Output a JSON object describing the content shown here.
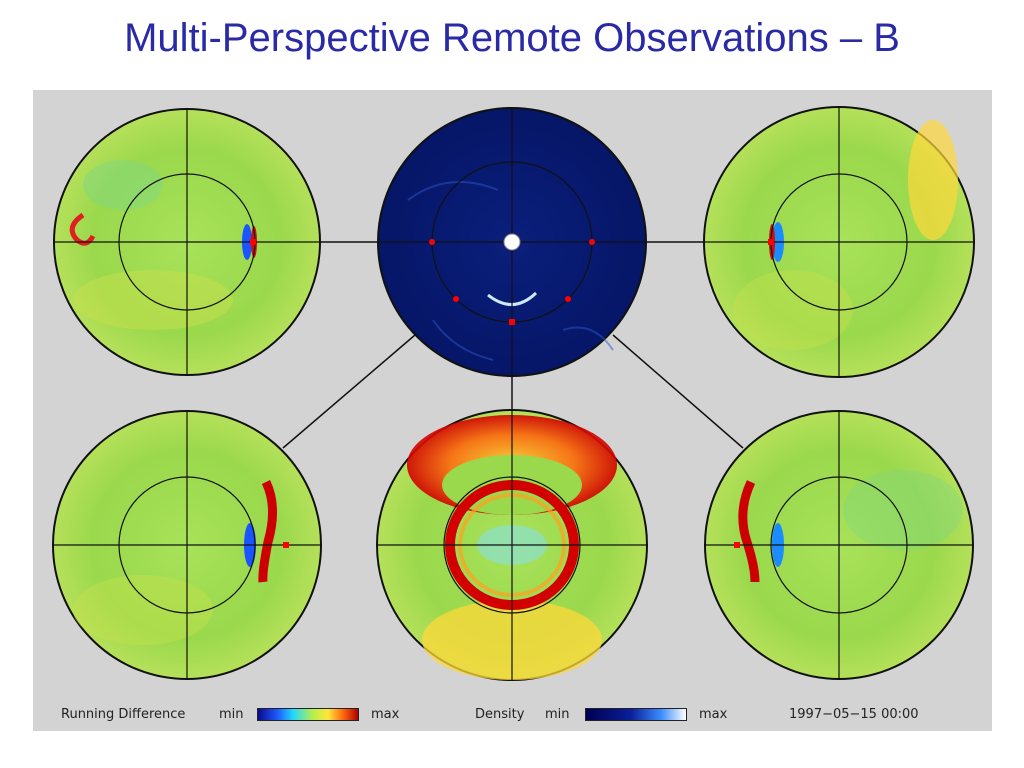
{
  "page": {
    "title": "Multi-Perspective Remote Observations – B"
  },
  "legend": {
    "running_difference_label": "Running Difference",
    "rd_min": "min",
    "rd_max": "max",
    "density_label": "Density",
    "density_min": "min",
    "density_max": "max",
    "timestamp": "1997−05−15   00:00"
  },
  "colors": {
    "title": "#2a2aa6",
    "background_panel": "#d3d3d3",
    "field_green": "#9bdc4a",
    "density_navy": "#071a6e",
    "marker_red": "#ff0000"
  }
}
